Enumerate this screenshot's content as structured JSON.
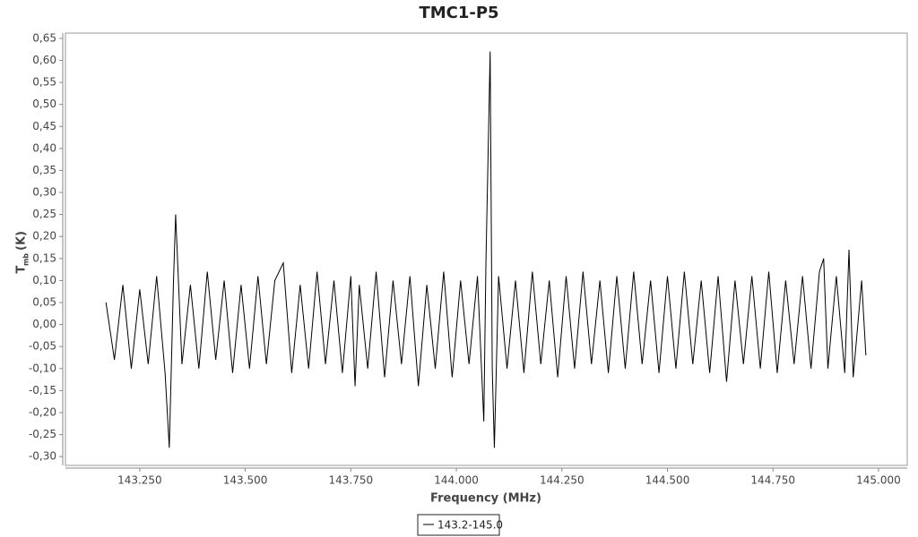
{
  "chart_data": {
    "type": "line",
    "title": "TMC1-P5",
    "x_label": "Frequency (MHz)",
    "y_label": "T",
    "y_label_sub": "mb",
    "y_label_unit": "(K)",
    "x": [
      143.17,
      143.19,
      143.21,
      143.23,
      143.25,
      143.27,
      143.29,
      143.31,
      143.32,
      143.33,
      143.335,
      143.35,
      143.37,
      143.39,
      143.41,
      143.43,
      143.45,
      143.47,
      143.49,
      143.51,
      143.53,
      143.55,
      143.57,
      143.59,
      143.61,
      143.63,
      143.65,
      143.67,
      143.69,
      143.71,
      143.73,
      143.75,
      143.76,
      143.77,
      143.79,
      143.81,
      143.83,
      143.85,
      143.87,
      143.89,
      143.91,
      143.93,
      143.95,
      143.97,
      143.99,
      144.01,
      144.03,
      144.05,
      144.065,
      144.07,
      144.08,
      144.085,
      144.09,
      144.1,
      144.12,
      144.14,
      144.16,
      144.18,
      144.2,
      144.22,
      144.24,
      144.26,
      144.28,
      144.3,
      144.32,
      144.34,
      144.36,
      144.38,
      144.4,
      144.42,
      144.44,
      144.46,
      144.48,
      144.5,
      144.52,
      144.54,
      144.56,
      144.58,
      144.6,
      144.62,
      144.64,
      144.66,
      144.68,
      144.7,
      144.72,
      144.74,
      144.76,
      144.78,
      144.8,
      144.82,
      144.84,
      144.86,
      144.87,
      144.88,
      144.9,
      144.92,
      144.93,
      144.94,
      144.96,
      144.97
    ],
    "series": [
      {
        "name": "143.2-145.0",
        "color": "#000000",
        "values": [
          0.05,
          -0.08,
          0.09,
          -0.1,
          0.08,
          -0.09,
          0.11,
          -0.11,
          -0.28,
          0.1,
          0.25,
          -0.09,
          0.09,
          -0.1,
          0.12,
          -0.08,
          0.1,
          -0.11,
          0.09,
          -0.1,
          0.11,
          -0.09,
          0.1,
          0.14,
          -0.11,
          0.09,
          -0.1,
          0.12,
          -0.09,
          0.1,
          -0.11,
          0.11,
          -0.14,
          0.09,
          -0.1,
          0.12,
          -0.12,
          0.1,
          -0.09,
          0.11,
          -0.14,
          0.09,
          -0.1,
          0.12,
          -0.12,
          0.1,
          -0.09,
          0.11,
          -0.22,
          0.14,
          0.62,
          -0.1,
          -0.28,
          0.11,
          -0.1,
          0.1,
          -0.11,
          0.12,
          -0.09,
          0.1,
          -0.12,
          0.11,
          -0.1,
          0.12,
          -0.09,
          0.1,
          -0.11,
          0.11,
          -0.1,
          0.12,
          -0.09,
          0.1,
          -0.11,
          0.11,
          -0.1,
          0.12,
          -0.09,
          0.1,
          -0.11,
          0.11,
          -0.13,
          0.1,
          -0.09,
          0.11,
          -0.1,
          0.12,
          -0.11,
          0.1,
          -0.09,
          0.11,
          -0.1,
          0.12,
          0.15,
          -0.1,
          0.11,
          -0.11,
          0.17,
          -0.12,
          0.1,
          -0.07
        ]
      }
    ],
    "xlim": [
      143.074,
      145.068
    ],
    "ylim": [
      -0.32,
      0.662
    ],
    "xticks": [
      {
        "value": 143.25,
        "label": "143.250"
      },
      {
        "value": 143.5,
        "label": "143.500"
      },
      {
        "value": 143.75,
        "label": "143.750"
      },
      {
        "value": 144.0,
        "label": "144.000"
      },
      {
        "value": 144.25,
        "label": "144.250"
      },
      {
        "value": 144.5,
        "label": "144.500"
      },
      {
        "value": 144.75,
        "label": "144.750"
      },
      {
        "value": 145.0,
        "label": "145.000"
      }
    ],
    "yticks": [
      {
        "value": -0.3,
        "label": "-0,30"
      },
      {
        "value": -0.25,
        "label": "-0,25"
      },
      {
        "value": -0.2,
        "label": "-0,20"
      },
      {
        "value": -0.15,
        "label": "-0,15"
      },
      {
        "value": -0.1,
        "label": "-0,10"
      },
      {
        "value": -0.05,
        "label": "-0,05"
      },
      {
        "value": 0,
        "label": "0,00"
      },
      {
        "value": 0.05,
        "label": "0,05"
      },
      {
        "value": 0.1,
        "label": "0,10"
      },
      {
        "value": 0.15,
        "label": "0,15"
      },
      {
        "value": 0.2,
        "label": "0,20"
      },
      {
        "value": 0.25,
        "label": "0,25"
      },
      {
        "value": 0.3,
        "label": "0,30"
      },
      {
        "value": 0.35,
        "label": "0,35"
      },
      {
        "value": 0.4,
        "label": "0,40"
      },
      {
        "value": 0.45,
        "label": "0,45"
      },
      {
        "value": 0.5,
        "label": "0,50"
      },
      {
        "value": 0.55,
        "label": "0,55"
      },
      {
        "value": 0.6,
        "label": "0,60"
      },
      {
        "value": 0.65,
        "label": "0,65"
      }
    ],
    "grid": false
  }
}
